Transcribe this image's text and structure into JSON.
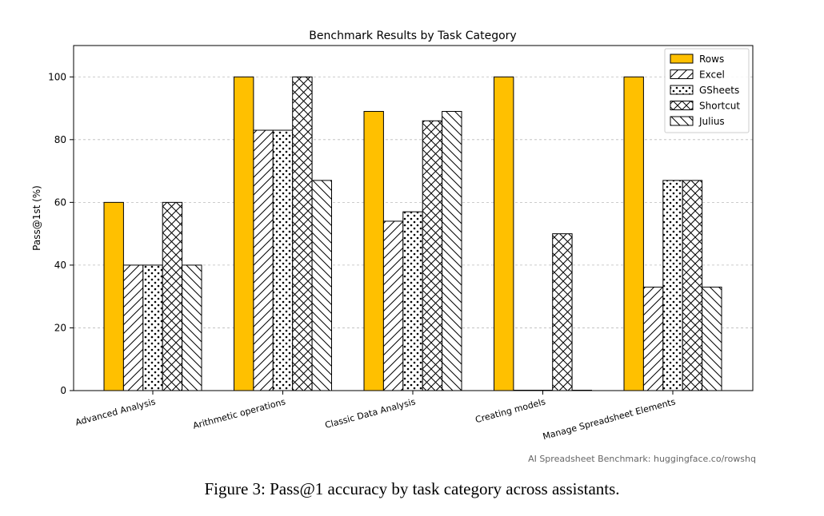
{
  "chart_data": {
    "type": "bar",
    "title": "Benchmark Results by Task Category",
    "xlabel": "",
    "ylabel": "Pass@1st (%)",
    "ylim": [
      0,
      110
    ],
    "yticks": [
      0,
      20,
      40,
      60,
      80,
      100
    ],
    "grid": true,
    "legend_position": "top-right",
    "categories": [
      "Advanced Analysis",
      "Arithmetic operations",
      "Classic Data Analysis",
      "Creating models",
      "Manage Spreadsheet Elements"
    ],
    "series": [
      {
        "name": "Rows",
        "values": [
          60,
          100,
          89,
          100,
          100
        ],
        "color": "#FFC000",
        "pattern": "solid"
      },
      {
        "name": "Excel",
        "values": [
          40,
          83,
          54,
          0,
          33
        ],
        "color": "#FFFFFF",
        "pattern": "diagonal"
      },
      {
        "name": "GSheets",
        "values": [
          40,
          83,
          57,
          0,
          67
        ],
        "color": "#FFFFFF",
        "pattern": "dots"
      },
      {
        "name": "Shortcut",
        "values": [
          60,
          100,
          86,
          50,
          67
        ],
        "color": "#FFFFFF",
        "pattern": "crosshatch"
      },
      {
        "name": "Julius",
        "values": [
          40,
          67,
          89,
          0,
          33
        ],
        "color": "#FFFFFF",
        "pattern": "backdiagonal"
      }
    ],
    "annotation": "AI Spreadsheet Benchmark: huggingface.co/rowshq"
  },
  "caption": "Figure 3: Pass@1 accuracy by task category across assistants."
}
